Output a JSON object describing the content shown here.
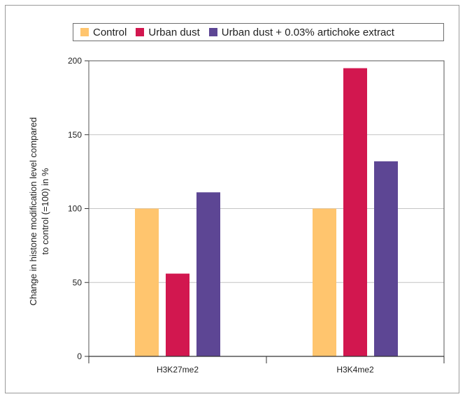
{
  "chart_data": {
    "type": "bar",
    "title": "",
    "categories": [
      "H3K27me2",
      "H3K4me2"
    ],
    "series": [
      {
        "name": "Control",
        "color": "#ffc56e",
        "values": [
          100,
          100
        ]
      },
      {
        "name": "Urban dust",
        "color": "#d2174f",
        "values": [
          56,
          195
        ]
      },
      {
        "name": "Urban dust + 0.03% artichoke extract",
        "color": "#5d4694",
        "values": [
          111,
          132
        ]
      }
    ],
    "xlabel": "",
    "ylabel_lines": [
      "Change in histone modification level compared",
      "to control (=100) in %"
    ],
    "ylim": [
      0,
      200
    ],
    "yticks": [
      0,
      50,
      100,
      150,
      200
    ],
    "grid": true,
    "legend_position": "top"
  }
}
